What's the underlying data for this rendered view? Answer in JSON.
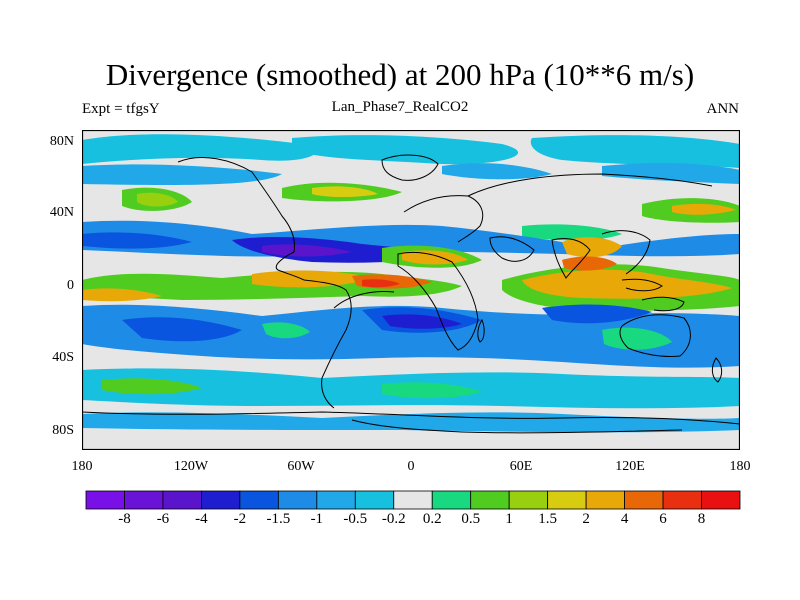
{
  "title": "Divergence (smoothed) at 200 hPa (10**6 m/s)",
  "subtitle_left": "Expt = tfgsY",
  "subtitle_center": "Lan_Phase7_RealCO2",
  "subtitle_right": "ANN",
  "y_ticks": [
    "80N",
    "40N",
    "0",
    "40S",
    "80S"
  ],
  "x_ticks": [
    "180",
    "120W",
    "60W",
    "0",
    "60E",
    "120E",
    "180"
  ],
  "colorbar": {
    "labels": [
      "-8",
      "-6",
      "-4",
      "-2",
      "-1.5",
      "-1",
      "-0.5",
      "-0.2",
      "0.2",
      "0.5",
      "1",
      "1.5",
      "2",
      "4",
      "6",
      "8"
    ],
    "colors": [
      "#7a10e8",
      "#6a12d8",
      "#5a14cc",
      "#1e1ed0",
      "#0a55e0",
      "#1e8ce6",
      "#20a8e8",
      "#18c0e0",
      "#e6e6e6",
      "#18d880",
      "#50cc20",
      "#98d010",
      "#d8cc10",
      "#e8a808",
      "#e86808",
      "#e83010",
      "#e81010"
    ]
  }
}
